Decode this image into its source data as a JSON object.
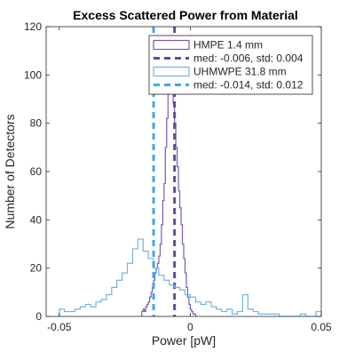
{
  "chart_data": {
    "type": "histogram",
    "title": "Excess Scattered Power from Material",
    "xlabel": "Power [pW]",
    "ylabel": "Number of Detectors",
    "xlim": [
      -0.055,
      0.05
    ],
    "ylim": [
      0,
      120
    ],
    "xticks": [
      -0.05,
      0,
      0.05
    ],
    "xtick_labels": [
      "-0.05",
      "0",
      "0.05"
    ],
    "yticks": [
      0,
      20,
      40,
      60,
      80,
      100,
      120
    ],
    "ytick_labels": [
      "0",
      "20",
      "40",
      "60",
      "80",
      "100",
      "120"
    ],
    "grid": false,
    "legend_position": "top-right",
    "colors": {
      "hmpe": "#7E57B5",
      "hmpe_median": "#5E4B9C",
      "uhmwpe": "#6BB6EC",
      "uhmwpe_median": "#3FA8E6"
    },
    "series": [
      {
        "name": "HMPE 1.4 mm",
        "style": "stairs",
        "color_key": "hmpe",
        "bin_edges": [
          -0.0185,
          -0.018,
          -0.0175,
          -0.017,
          -0.0165,
          -0.016,
          -0.0155,
          -0.015,
          -0.0145,
          -0.014,
          -0.0135,
          -0.013,
          -0.0125,
          -0.012,
          -0.0115,
          -0.011,
          -0.0105,
          -0.01,
          -0.0095,
          -0.009,
          -0.0085,
          -0.008,
          -0.0075,
          -0.007,
          -0.0065,
          -0.006,
          -0.0055,
          -0.005,
          -0.0045,
          -0.004,
          -0.0035,
          -0.003,
          -0.0025,
          -0.002,
          -0.0015,
          -0.001,
          -0.0005,
          0.0,
          0.0005,
          0.001,
          0.0015,
          0.002,
          0.0025
        ],
        "counts": [
          2,
          3,
          2,
          4,
          5,
          6,
          8,
          10,
          12,
          15,
          18,
          20,
          22,
          25,
          30,
          38,
          48,
          55,
          70,
          82,
          92,
          97,
          103,
          95,
          88,
          80,
          70,
          62,
          52,
          45,
          38,
          30,
          24,
          18,
          12,
          8,
          5,
          3,
          2,
          1,
          1,
          0
        ]
      },
      {
        "name": "med: -0.006, std: 0.004",
        "style": "vline-dashed",
        "color_key": "hmpe_median",
        "x": -0.006
      },
      {
        "name": "UHMWPE 31.8 mm",
        "style": "stairs",
        "color_key": "uhmwpe",
        "bin_edges": [
          -0.05,
          -0.048,
          -0.046,
          -0.044,
          -0.042,
          -0.04,
          -0.038,
          -0.036,
          -0.034,
          -0.032,
          -0.03,
          -0.028,
          -0.026,
          -0.024,
          -0.022,
          -0.02,
          -0.018,
          -0.016,
          -0.014,
          -0.012,
          -0.01,
          -0.008,
          -0.006,
          -0.004,
          -0.002,
          0.0,
          0.002,
          0.004,
          0.006,
          0.008,
          0.01,
          0.012,
          0.014,
          0.016,
          0.018,
          0.02,
          0.022,
          0.024,
          0.026,
          0.028,
          0.03,
          0.032,
          0.034,
          0.036,
          0.038,
          0.04,
          0.042,
          0.044,
          0.046,
          0.048,
          0.05
        ],
        "counts": [
          3,
          2,
          2,
          3,
          4,
          5,
          4,
          6,
          7,
          9,
          12,
          15,
          18,
          22,
          28,
          32,
          27,
          24,
          20,
          17,
          15,
          13,
          12,
          11,
          9,
          8,
          6,
          5,
          6,
          4,
          3,
          2,
          3,
          1,
          2,
          9,
          3,
          2,
          1,
          1,
          1,
          1,
          0,
          0,
          0,
          0,
          1,
          0,
          0,
          2
        ]
      },
      {
        "name": "med: -0.014, std: 0.012",
        "style": "vline-dashed",
        "color_key": "uhmwpe_median",
        "x": -0.014
      }
    ]
  }
}
